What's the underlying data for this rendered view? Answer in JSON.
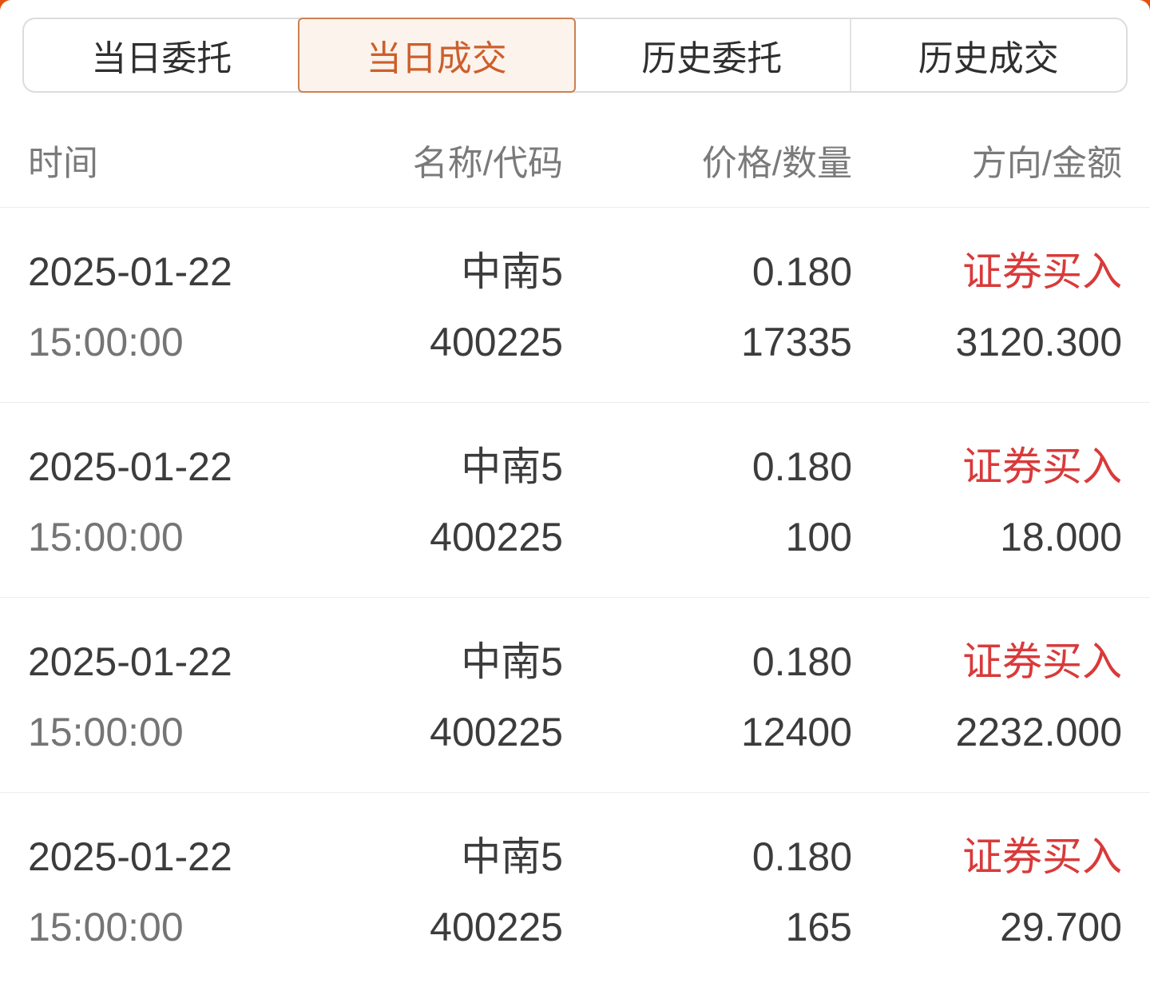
{
  "tabs": [
    {
      "label": "当日委托",
      "active": false
    },
    {
      "label": "当日成交",
      "active": true
    },
    {
      "label": "历史委托",
      "active": false
    },
    {
      "label": "历史成交",
      "active": false
    }
  ],
  "table": {
    "headers": [
      "时间",
      "名称/代码",
      "价格/数量",
      "方向/金额"
    ],
    "rows": [
      {
        "date": "2025-01-22",
        "time": "15:00:00",
        "name": "中南5",
        "code": "400225",
        "price": "0.180",
        "quantity": "17335",
        "direction": "证券买入",
        "amount": "3120.300"
      },
      {
        "date": "2025-01-22",
        "time": "15:00:00",
        "name": "中南5",
        "code": "400225",
        "price": "0.180",
        "quantity": "100",
        "direction": "证券买入",
        "amount": "18.000"
      },
      {
        "date": "2025-01-22",
        "time": "15:00:00",
        "name": "中南5",
        "code": "400225",
        "price": "0.180",
        "quantity": "12400",
        "direction": "证券买入",
        "amount": "2232.000"
      },
      {
        "date": "2025-01-22",
        "time": "15:00:00",
        "name": "中南5",
        "code": "400225",
        "price": "0.180",
        "quantity": "165",
        "direction": "证券买入",
        "amount": "29.700"
      }
    ]
  },
  "colors": {
    "background_accent": "#e4510f",
    "active_tab_text": "#cd5f2b",
    "active_tab_border": "#cd8053",
    "active_tab_background": "#fbf3ec",
    "buy_red": "#d93a3a",
    "text_dark": "#3c3c3c",
    "text_muted": "#757575",
    "header_gray": "#7a7a7a"
  }
}
